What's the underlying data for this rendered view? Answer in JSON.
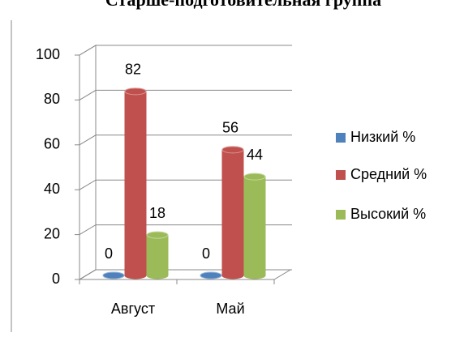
{
  "chart_data": {
    "type": "bar3d",
    "title": "Старше-подготовительная группа",
    "categories": [
      "Август",
      "Май"
    ],
    "series": [
      {
        "name": "Низкий %",
        "color": "#4f81bd",
        "values": [
          0,
          0
        ]
      },
      {
        "name": "Средний %",
        "color": "#c0504d",
        "values": [
          82,
          56
        ]
      },
      {
        "name": "Высокий %",
        "color": "#9bbb59",
        "values": [
          18,
          44
        ]
      }
    ],
    "ylim": [
      0,
      100
    ],
    "yticks": [
      0,
      20,
      40,
      60,
      80,
      100
    ],
    "grid": true,
    "legend": "right"
  }
}
